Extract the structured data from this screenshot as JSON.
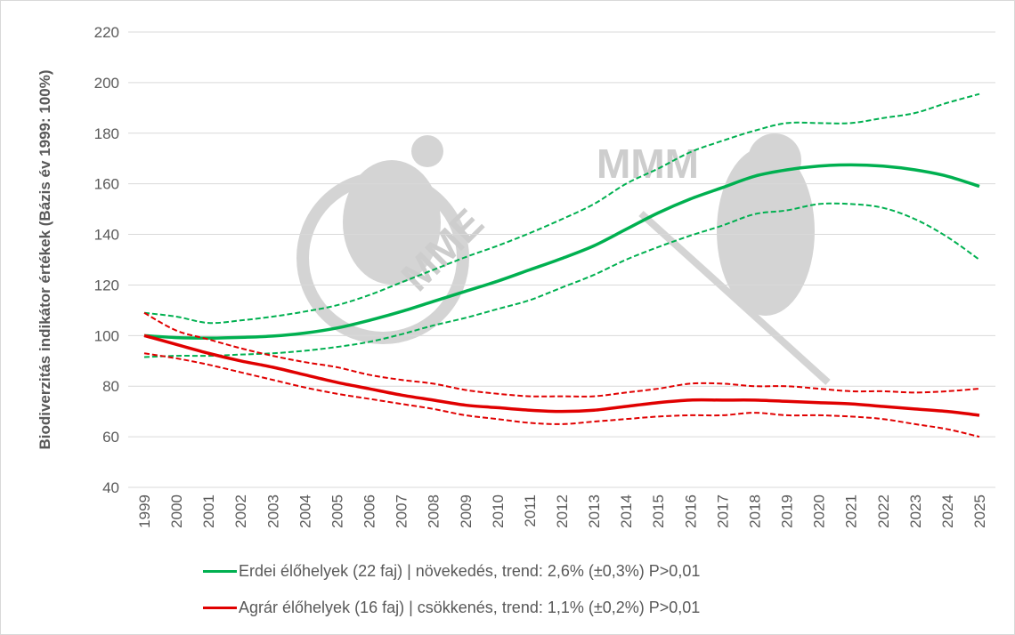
{
  "chart_data": {
    "type": "line",
    "title": "",
    "xlabel": "",
    "ylabel": "Biodiverzitás indikátor értékek (Bázis év 1999: 100%)",
    "ylim": [
      40,
      220
    ],
    "yticks": [
      40,
      60,
      80,
      100,
      120,
      140,
      160,
      180,
      200,
      220
    ],
    "grid": true,
    "legend_position": "bottom",
    "x": [
      1999,
      2000,
      2001,
      2002,
      2003,
      2004,
      2005,
      2006,
      2007,
      2008,
      2009,
      2010,
      2011,
      2012,
      2013,
      2014,
      2015,
      2016,
      2017,
      2018,
      2019,
      2020,
      2021,
      2022,
      2023,
      2024,
      2025
    ],
    "series": [
      {
        "name": "Erdei élőhelyek (22 faj) | növekedés, trend: 2,6% (±0,3%) P>0,01",
        "color": "#00b050",
        "values": [
          100,
          99.2,
          99,
          99.3,
          99.8,
          101,
          103,
          106,
          109.5,
          113.5,
          117.5,
          121.5,
          126,
          130.5,
          135.5,
          142,
          148.5,
          154,
          158.5,
          163,
          165.5,
          167,
          167.5,
          167,
          165.5,
          163,
          159
        ],
        "upper": [
          109,
          107.5,
          105,
          106,
          107.5,
          109.5,
          112,
          116,
          121,
          126,
          131,
          135.5,
          140.5,
          146,
          152,
          160,
          166,
          172.5,
          177,
          181,
          184,
          184,
          184,
          186,
          188,
          192,
          195.5
        ],
        "lower": [
          91.5,
          92,
          92,
          92.5,
          93,
          94,
          95.5,
          97.5,
          100.5,
          104,
          107,
          110.5,
          114,
          119,
          124,
          130,
          135,
          139.5,
          143.5,
          148,
          149.5,
          152,
          152,
          150.5,
          146,
          139,
          130
        ]
      },
      {
        "name": "Agrár élőhelyek (16 faj) | csökkenés, trend: 1,1% (±0,2%) P>0,01",
        "color": "#e00000",
        "values": [
          100,
          96.5,
          93,
          90,
          87.5,
          84.5,
          81.5,
          79,
          76.5,
          74.5,
          72.5,
          71.5,
          70.5,
          70,
          70.5,
          72,
          73.5,
          74.5,
          74.5,
          74.5,
          74,
          73.5,
          73,
          72,
          71,
          70,
          68.5
        ],
        "upper": [
          109,
          102,
          98.5,
          95,
          92,
          89.5,
          87.5,
          84.5,
          82.5,
          81,
          78.5,
          77,
          76,
          76,
          76,
          77.5,
          79,
          81,
          81,
          80,
          80,
          79,
          78,
          78,
          77.5,
          78,
          79
        ],
        "lower": [
          93,
          91,
          88.5,
          85.5,
          82.5,
          79.5,
          77,
          75,
          73,
          71,
          68.5,
          67,
          65.5,
          65,
          66,
          67,
          68,
          68.5,
          68.5,
          69.5,
          68.5,
          68.5,
          68,
          67,
          65,
          63,
          60
        ]
      }
    ]
  },
  "watermarks": {
    "left_logo": "MME",
    "right_logo": "MMM"
  }
}
